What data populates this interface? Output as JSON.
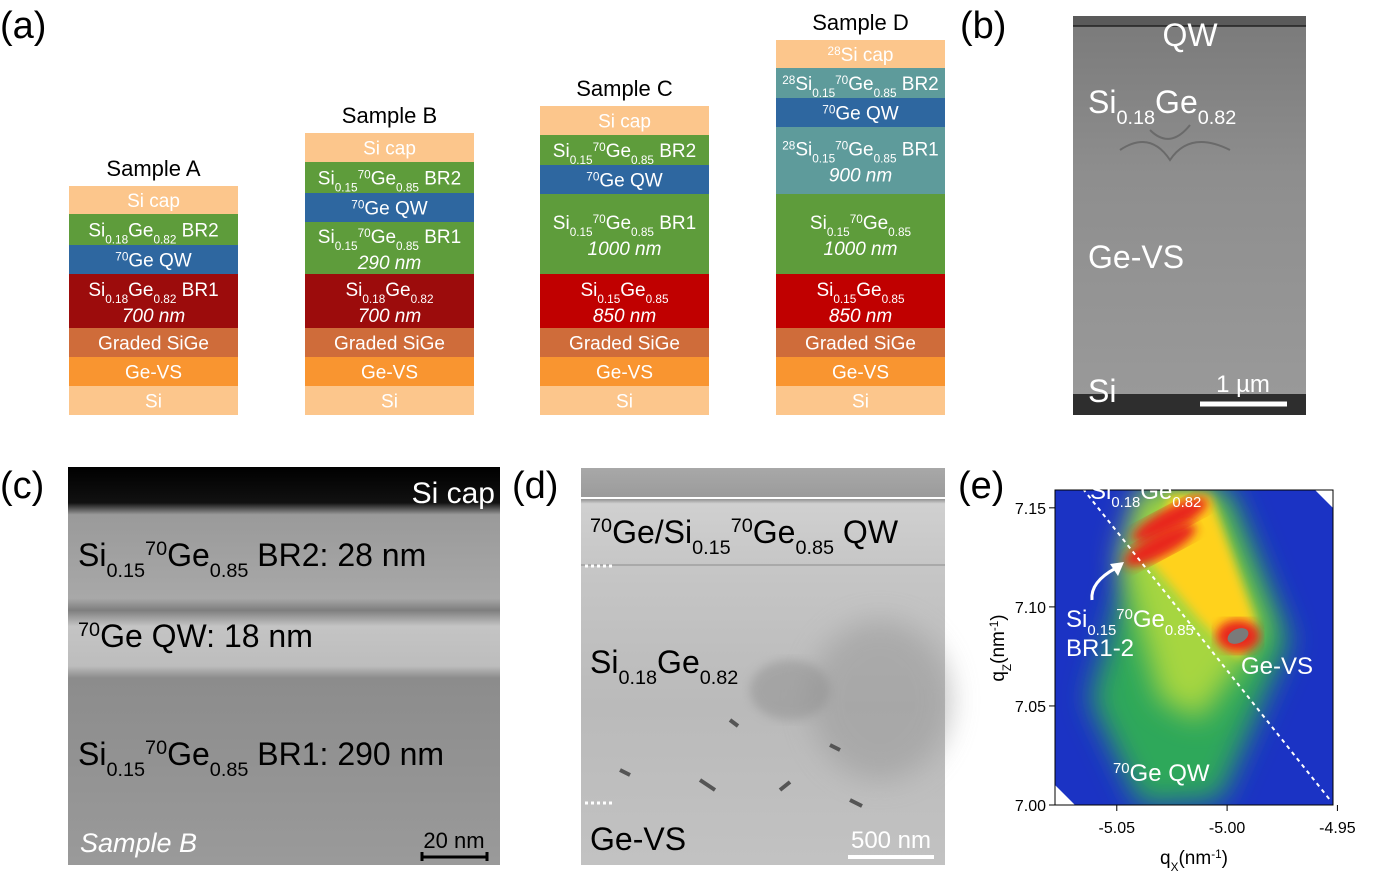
{
  "panel_labels": [
    "(a)",
    "(b)",
    "(c)",
    "(d)",
    "(e)"
  ],
  "panel_a": {
    "samples": [
      {
        "name": "Sample A",
        "layers": [
          {
            "color": "#fcc68c",
            "label": [
              {
                "text": "Si cap"
              }
            ]
          },
          {
            "color": "#5e9c3b",
            "label": [
              {
                "text": "Si"
              },
              {
                "text": "0.18",
                "pos": "sub"
              },
              {
                "text": "Ge"
              },
              {
                "text": "0.82",
                "pos": "sub"
              },
              {
                "text": " BR2"
              }
            ]
          },
          {
            "color": "#2e67a0",
            "label": [
              {
                "text": "70",
                "pos": "sup"
              },
              {
                "text": "Ge QW"
              }
            ]
          },
          {
            "color": "#9c0c0c",
            "label": [
              {
                "text": "Si"
              },
              {
                "text": "0.18",
                "pos": "sub"
              },
              {
                "text": "Ge"
              },
              {
                "text": "0.82",
                "pos": "sub"
              },
              {
                "text": " BR1"
              }
            ],
            "thickness": "700 nm"
          },
          {
            "color": "#cf6c3a",
            "label": [
              {
                "text": "Graded SiGe"
              }
            ]
          },
          {
            "color": "#f99530",
            "label": [
              {
                "text": "Ge-VS"
              }
            ]
          },
          {
            "color": "#fcc68c",
            "label": [
              {
                "text": "Si"
              }
            ]
          }
        ]
      },
      {
        "name": "Sample B",
        "layers": [
          {
            "color": "#fcc68c",
            "label": [
              {
                "text": "Si cap"
              }
            ]
          },
          {
            "color": "#5e9c3b",
            "label": [
              {
                "text": "Si"
              },
              {
                "text": "0.15",
                "pos": "sub"
              },
              {
                "text": "70",
                "pos": "sup"
              },
              {
                "text": "Ge"
              },
              {
                "text": "0.85",
                "pos": "sub"
              },
              {
                "text": " BR2"
              }
            ]
          },
          {
            "color": "#2e67a0",
            "label": [
              {
                "text": "70",
                "pos": "sup"
              },
              {
                "text": "Ge QW"
              }
            ]
          },
          {
            "color": "#5e9c3b",
            "label": [
              {
                "text": "Si"
              },
              {
                "text": "0.15",
                "pos": "sub"
              },
              {
                "text": "70",
                "pos": "sup"
              },
              {
                "text": "Ge"
              },
              {
                "text": "0.85",
                "pos": "sub"
              },
              {
                "text": " BR1"
              }
            ],
            "thickness": "290 nm"
          },
          {
            "color": "#9c0c0c",
            "label": [
              {
                "text": "Si"
              },
              {
                "text": "0.18",
                "pos": "sub"
              },
              {
                "text": "Ge"
              },
              {
                "text": "0.82",
                "pos": "sub"
              }
            ],
            "thickness": "700 nm"
          },
          {
            "color": "#cf6c3a",
            "label": [
              {
                "text": "Graded SiGe"
              }
            ]
          },
          {
            "color": "#f99530",
            "label": [
              {
                "text": "Ge-VS"
              }
            ]
          },
          {
            "color": "#fcc68c",
            "label": [
              {
                "text": "Si"
              }
            ]
          }
        ]
      },
      {
        "name": "Sample C",
        "layers": [
          {
            "color": "#fcc68c",
            "label": [
              {
                "text": "Si cap"
              }
            ]
          },
          {
            "color": "#5e9c3b",
            "label": [
              {
                "text": "Si"
              },
              {
                "text": "0.15",
                "pos": "sub"
              },
              {
                "text": "70",
                "pos": "sup"
              },
              {
                "text": "Ge"
              },
              {
                "text": "0.85",
                "pos": "sub"
              },
              {
                "text": " BR2"
              }
            ]
          },
          {
            "color": "#2e67a0",
            "label": [
              {
                "text": "70",
                "pos": "sup"
              },
              {
                "text": "Ge QW"
              }
            ]
          },
          {
            "color": "#5e9c3b",
            "label": [
              {
                "text": "Si"
              },
              {
                "text": "0.15",
                "pos": "sub"
              },
              {
                "text": "70",
                "pos": "sup"
              },
              {
                "text": "Ge"
              },
              {
                "text": "0.85",
                "pos": "sub"
              },
              {
                "text": " BR1"
              }
            ],
            "thickness": "1000 nm"
          },
          {
            "color": "#c00000",
            "label": [
              {
                "text": "Si"
              },
              {
                "text": "0.15",
                "pos": "sub"
              },
              {
                "text": "Ge"
              },
              {
                "text": "0.85",
                "pos": "sub"
              }
            ],
            "thickness": "850 nm"
          },
          {
            "color": "#cf6c3a",
            "label": [
              {
                "text": "Graded SiGe"
              }
            ]
          },
          {
            "color": "#f99530",
            "label": [
              {
                "text": "Ge-VS"
              }
            ]
          },
          {
            "color": "#fcc68c",
            "label": [
              {
                "text": "Si"
              }
            ]
          }
        ]
      },
      {
        "name": "Sample D",
        "layers": [
          {
            "color": "#fcc68c",
            "label": [
              {
                "text": "28",
                "pos": "sup"
              },
              {
                "text": "Si cap"
              }
            ]
          },
          {
            "color": "#5e9b9b",
            "label": [
              {
                "text": "28",
                "pos": "sup"
              },
              {
                "text": "Si"
              },
              {
                "text": "0.15",
                "pos": "sub"
              },
              {
                "text": "70",
                "pos": "sup"
              },
              {
                "text": "Ge"
              },
              {
                "text": "0.85",
                "pos": "sub"
              },
              {
                "text": " BR2"
              }
            ]
          },
          {
            "color": "#2e67a0",
            "label": [
              {
                "text": "70",
                "pos": "sup"
              },
              {
                "text": "Ge QW"
              }
            ]
          },
          {
            "color": "#5e9b9b",
            "label": [
              {
                "text": "28",
                "pos": "sup"
              },
              {
                "text": "Si"
              },
              {
                "text": "0.15",
                "pos": "sub"
              },
              {
                "text": "70",
                "pos": "sup"
              },
              {
                "text": "Ge"
              },
              {
                "text": "0.85",
                "pos": "sub"
              },
              {
                "text": " BR1"
              }
            ],
            "thickness": "900 nm"
          },
          {
            "color": "#5e9c3b",
            "label": [
              {
                "text": "Si"
              },
              {
                "text": "0.15",
                "pos": "sub"
              },
              {
                "text": "70",
                "pos": "sup"
              },
              {
                "text": "Ge"
              },
              {
                "text": "0.85",
                "pos": "sub"
              }
            ],
            "thickness": "1000 nm"
          },
          {
            "color": "#c00000",
            "label": [
              {
                "text": "Si"
              },
              {
                "text": "0.15",
                "pos": "sub"
              },
              {
                "text": "Ge"
              },
              {
                "text": "0.85",
                "pos": "sub"
              }
            ],
            "thickness": "850 nm"
          },
          {
            "color": "#cf6c3a",
            "label": [
              {
                "text": "Graded SiGe"
              }
            ]
          },
          {
            "color": "#f99530",
            "label": [
              {
                "text": "Ge-VS"
              }
            ]
          },
          {
            "color": "#fcc68c",
            "label": [
              {
                "text": "Si"
              }
            ]
          }
        ]
      }
    ]
  },
  "panel_b": {
    "labels": [
      [
        {
          "text": "QW"
        }
      ],
      [
        {
          "text": "Si"
        },
        {
          "text": "0.18",
          "pos": "sub"
        },
        {
          "text": "Ge"
        },
        {
          "text": "0.82",
          "pos": "sub"
        }
      ],
      [
        {
          "text": "Ge-VS"
        }
      ],
      [
        {
          "text": "Si"
        }
      ]
    ],
    "scale_bar": "1 µm"
  },
  "panel_c": {
    "labels": [
      [
        {
          "text": "Si cap"
        }
      ],
      [
        {
          "text": "Si"
        },
        {
          "text": "0.15",
          "pos": "sub"
        },
        {
          "text": "70",
          "pos": "sup"
        },
        {
          "text": "Ge"
        },
        {
          "text": "0.85",
          "pos": "sub"
        },
        {
          "text": " BR2: 28 nm"
        }
      ],
      [
        {
          "text": "70",
          "pos": "sup"
        },
        {
          "text": "Ge QW: 18 nm"
        }
      ],
      [
        {
          "text": "Si"
        },
        {
          "text": "0.15",
          "pos": "sub"
        },
        {
          "text": "70",
          "pos": "sup"
        },
        {
          "text": "Ge"
        },
        {
          "text": "0.85",
          "pos": "sub"
        },
        {
          "text": " BR1: 290 nm"
        }
      ]
    ],
    "sample": "Sample B",
    "scale_bar": "20 nm"
  },
  "panel_d": {
    "labels": [
      [
        {
          "text": "70",
          "pos": "sup"
        },
        {
          "text": "Ge/Si"
        },
        {
          "text": "0.15",
          "pos": "sub"
        },
        {
          "text": "70",
          "pos": "sup"
        },
        {
          "text": "Ge"
        },
        {
          "text": "0.85",
          "pos": "sub"
        },
        {
          "text": " QW"
        }
      ],
      [
        {
          "text": "Si"
        },
        {
          "text": "0.18",
          "pos": "sub"
        },
        {
          "text": "Ge"
        },
        {
          "text": "0.82",
          "pos": "sub"
        }
      ],
      [
        {
          "text": "Ge-VS"
        }
      ]
    ],
    "scale_bar": "500 nm"
  },
  "panel_e": {
    "labels": [
      [
        {
          "text": "Si"
        },
        {
          "text": "0.18",
          "pos": "sub"
        },
        {
          "text": "Ge"
        },
        {
          "text": "0.82",
          "pos": "sub"
        }
      ],
      [
        {
          "text": "Si"
        },
        {
          "text": "0.15",
          "pos": "sub"
        },
        {
          "text": "70",
          "pos": "sup"
        },
        {
          "text": "Ge"
        },
        {
          "text": "0.85",
          "pos": "sub"
        }
      ],
      [
        {
          "text": "BR1-2"
        }
      ],
      [
        {
          "text": "Ge-VS"
        }
      ],
      [
        {
          "text": "70",
          "pos": "sup"
        },
        {
          "text": "Ge QW"
        }
      ]
    ],
    "x_label": [
      {
        "text": "q"
      },
      {
        "text": "X",
        "pos": "sub"
      },
      {
        "text": "(nm"
      },
      {
        "text": "-1",
        "pos": "sup"
      },
      {
        "text": ")"
      }
    ],
    "y_label": [
      {
        "text": "q"
      },
      {
        "text": "Z",
        "pos": "sub"
      },
      {
        "text": "(nm"
      },
      {
        "text": "-1",
        "pos": "sup"
      },
      {
        "text": ")"
      }
    ],
    "xlim": [
      -5.078,
      -4.952
    ],
    "ylim": [
      7.0,
      7.159
    ],
    "xticks": [
      -5.05,
      {
        "value": -5.0,
        "label": "-5.00"
      },
      -4.95
    ],
    "yticks": [
      {
        "value": 7.0,
        "label": "7.00"
      },
      7.05,
      {
        "value": 7.1,
        "label": "7.10"
      },
      7.15
    ]
  }
}
